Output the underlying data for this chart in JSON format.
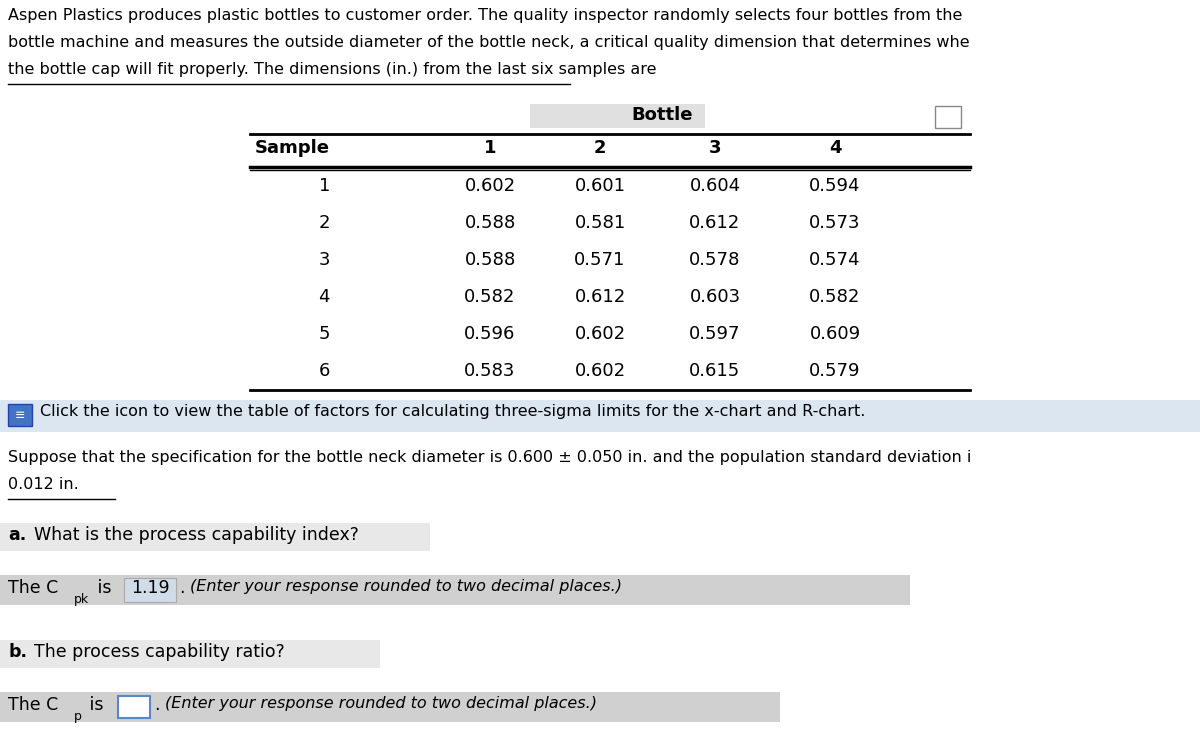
{
  "intro_text_lines": [
    "Aspen Plastics produces plastic bottles to customer order. The quality inspector randomly selects four bottles from the",
    "bottle machine and measures the outside diameter of the bottle neck, a critical quality dimension that determines whe",
    "the bottle cap will fit properly. The dimensions (in.) from the last six samples are"
  ],
  "table_header_top": "Bottle",
  "table_cols": [
    "Sample",
    "1",
    "2",
    "3",
    "4"
  ],
  "table_data": [
    [
      "1",
      "0.602",
      "0.601",
      "0.604",
      "0.594"
    ],
    [
      "2",
      "0.588",
      "0.581",
      "0.612",
      "0.573"
    ],
    [
      "3",
      "0.588",
      "0.571",
      "0.578",
      "0.574"
    ],
    [
      "4",
      "0.582",
      "0.612",
      "0.603",
      "0.582"
    ],
    [
      "5",
      "0.596",
      "0.602",
      "0.597",
      "0.609"
    ],
    [
      "6",
      "0.583",
      "0.602",
      "0.615",
      "0.579"
    ]
  ],
  "click_text": "Click the icon to view the table of factors for calculating three-sigma limits for the x-chart and R-chart.",
  "suppose_line1": "Suppose that the specification for the bottle neck diameter is 0.600 ± 0.050 in. and the population standard deviation i",
  "suppose_line2": "0.012 in.",
  "bg_color": "#ffffff",
  "text_color": "#000000",
  "gray_light": "#e8e8e8",
  "gray_medium": "#d0d0d0",
  "gray_answer": "#d0d0d0",
  "blue_light": "#dce6f1"
}
